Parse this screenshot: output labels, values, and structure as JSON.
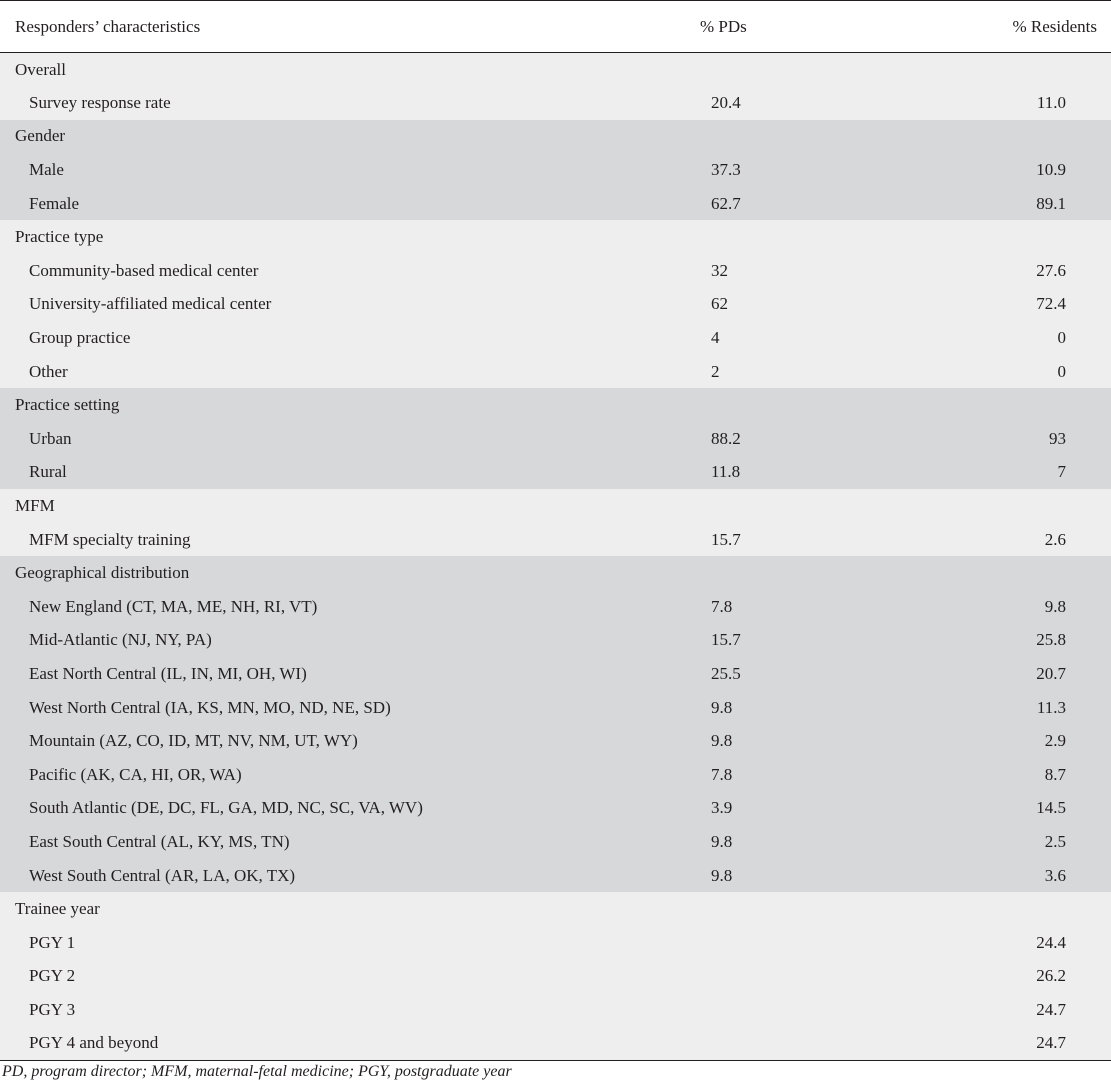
{
  "header": {
    "col1": "Responders’ characteristics",
    "col2": "% PDs",
    "col3": "% Residents"
  },
  "groups": [
    {
      "title": "Overall",
      "shade": "light",
      "rows": [
        {
          "label": "Survey response rate",
          "pds": "20.4",
          "residents": "11.0"
        }
      ]
    },
    {
      "title": "Gender",
      "shade": "dark",
      "rows": [
        {
          "label": "Male",
          "pds": "37.3",
          "residents": "10.9"
        },
        {
          "label": "Female",
          "pds": "62.7",
          "residents": "89.1"
        }
      ]
    },
    {
      "title": "Practice type",
      "shade": "light",
      "rows": [
        {
          "label": "Community-based medical center",
          "pds": "32",
          "residents": "27.6"
        },
        {
          "label": "University-affiliated medical center",
          "pds": "62",
          "residents": "72.4"
        },
        {
          "label": "Group practice",
          "pds": "4",
          "residents": "0"
        },
        {
          "label": "Other",
          "pds": "2",
          "residents": "0"
        }
      ]
    },
    {
      "title": "Practice setting",
      "shade": "dark",
      "rows": [
        {
          "label": "Urban",
          "pds": "88.2",
          "residents": "93"
        },
        {
          "label": "Rural",
          "pds": "11.8",
          "residents": "7"
        }
      ]
    },
    {
      "title": "MFM",
      "shade": "light",
      "rows": [
        {
          "label": "MFM specialty training",
          "pds": "15.7",
          "residents": "2.6"
        }
      ]
    },
    {
      "title": "Geographical distribution",
      "shade": "dark",
      "rows": [
        {
          "label": "New England (CT, MA, ME, NH, RI, VT)",
          "pds": "7.8",
          "residents": "9.8"
        },
        {
          "label": "Mid-Atlantic (NJ, NY, PA)",
          "pds": "15.7",
          "residents": "25.8"
        },
        {
          "label": "East North Central (IL, IN, MI, OH, WI)",
          "pds": "25.5",
          "residents": "20.7"
        },
        {
          "label": "West North Central (IA, KS, MN, MO, ND, NE, SD)",
          "pds": "9.8",
          "residents": "11.3"
        },
        {
          "label": "Mountain (AZ, CO, ID, MT, NV, NM, UT, WY)",
          "pds": "9.8",
          "residents": "2.9"
        },
        {
          "label": "Pacific (AK, CA, HI, OR, WA)",
          "pds": "7.8",
          "residents": "8.7"
        },
        {
          "label": "South Atlantic (DE, DC, FL, GA, MD, NC, SC, VA, WV)",
          "pds": "3.9",
          "residents": "14.5"
        },
        {
          "label": "East South Central (AL, KY, MS, TN)",
          "pds": "9.8",
          "residents": "2.5"
        },
        {
          "label": "West South Central (AR, LA, OK, TX)",
          "pds": "9.8",
          "residents": "3.6"
        }
      ]
    },
    {
      "title": "Trainee year",
      "shade": "light",
      "rows": [
        {
          "label": "PGY 1",
          "pds": "",
          "residents": "24.4"
        },
        {
          "label": "PGY 2",
          "pds": "",
          "residents": "26.2"
        },
        {
          "label": "PGY 3",
          "pds": "",
          "residents": "24.7"
        },
        {
          "label": "PGY 4 and beyond",
          "pds": "",
          "residents": "24.7"
        }
      ]
    }
  ],
  "footnote": "PD, program director; MFM, maternal-fetal medicine; PGY, postgraduate year",
  "colors": {
    "text": "#231f20",
    "light_band": "#eeeeef",
    "dark_band": "#d7d8da"
  }
}
